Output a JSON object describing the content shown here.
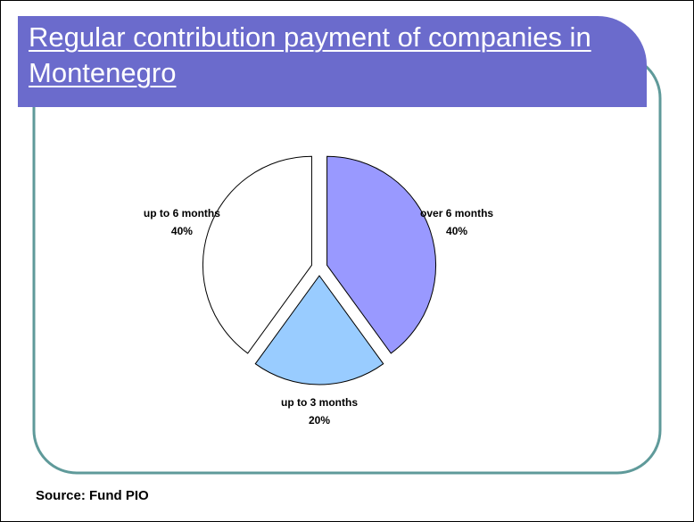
{
  "chart_data": {
    "type": "pie",
    "title": "Regular contribution payment of companies in Montenegro",
    "categories": [
      "over 6 months",
      "up to 3 months",
      "up to 6 months"
    ],
    "values": [
      40,
      20,
      40
    ],
    "value_labels": [
      "40%",
      "20%",
      "40%"
    ],
    "colors": [
      "#9999ff",
      "#99ccff",
      "#ffffff"
    ]
  },
  "source": "Source: Fund PIO"
}
